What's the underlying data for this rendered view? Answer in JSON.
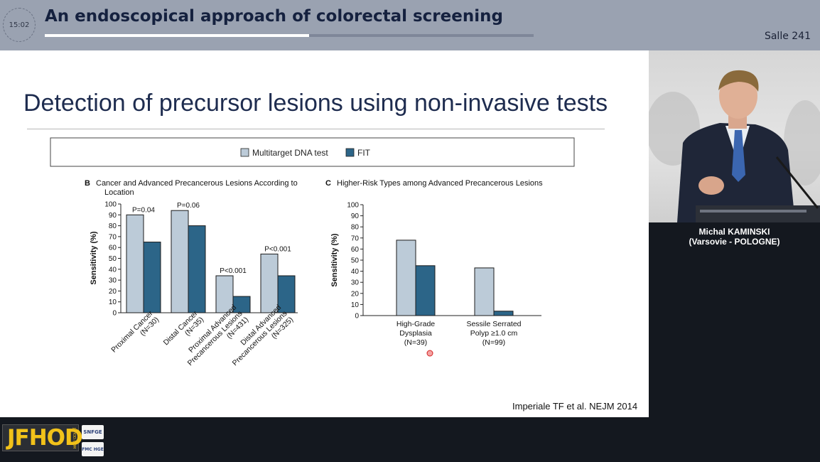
{
  "header": {
    "clock": "15:02",
    "title": "An endoscopical approach of colorectal screening",
    "room": "Salle 241",
    "progress_fraction": 0.54
  },
  "slide": {
    "title": "Detection of precursor lesions using non-invasive tests",
    "citation": "Imperiale TF et al. NEJM 2014"
  },
  "legend": {
    "items": [
      {
        "label": "Multitarget DNA test",
        "color": "#bccbd8"
      },
      {
        "label": "FIT",
        "color": "#2c6588"
      }
    ]
  },
  "chart_data": [
    {
      "type": "bar",
      "panel_letter": "B",
      "title": "Cancer and Advanced Precancerous Lesions According to Location",
      "ylabel": "Sensitivity (%)",
      "ylim": [
        0,
        100
      ],
      "yticks": [
        0,
        10,
        20,
        30,
        40,
        50,
        60,
        70,
        80,
        90,
        100
      ],
      "categories": [
        [
          "Proximal Cancer",
          "(N=30)"
        ],
        [
          "Distal Cancer",
          "(N=35)"
        ],
        [
          "Proximal Advanced",
          "Precancerous Lesions",
          "(N=431)"
        ],
        [
          "Distal Advanced",
          "Precancerous Lesions",
          "(N=325)"
        ]
      ],
      "series": [
        {
          "name": "Multitarget DNA test",
          "values": [
            90,
            94,
            34,
            54
          ]
        },
        {
          "name": "FIT",
          "values": [
            65,
            80,
            15,
            34
          ]
        }
      ],
      "annotations": [
        "P=0.04",
        "P=0.06",
        "P<0.001",
        "P<0.001"
      ]
    },
    {
      "type": "bar",
      "panel_letter": "C",
      "title": "Higher-Risk Types among Advanced Precancerous Lesions",
      "ylabel": "Sensitivity (%)",
      "ylim": [
        0,
        100
      ],
      "yticks": [
        0,
        10,
        20,
        30,
        40,
        50,
        60,
        70,
        80,
        90,
        100
      ],
      "categories": [
        [
          "High-Grade",
          "Dysplasia",
          "(N=39)"
        ],
        [
          "Sessile Serrated",
          "Polyp ≥1.0 cm",
          "(N=99)"
        ]
      ],
      "series": [
        {
          "name": "Multitarget DNA test",
          "values": [
            68,
            43
          ]
        },
        {
          "name": "FIT",
          "values": [
            45,
            4
          ]
        }
      ]
    }
  ],
  "presenter": {
    "name": "Michal KAMINSKI",
    "affiliation": "(Varsovie - POLOGNE)"
  },
  "footer": {
    "logo": "JFHOD",
    "logo_sub": "JFHOD.COM",
    "partner1": "SNFGE",
    "partner2": "FMC HGE"
  }
}
